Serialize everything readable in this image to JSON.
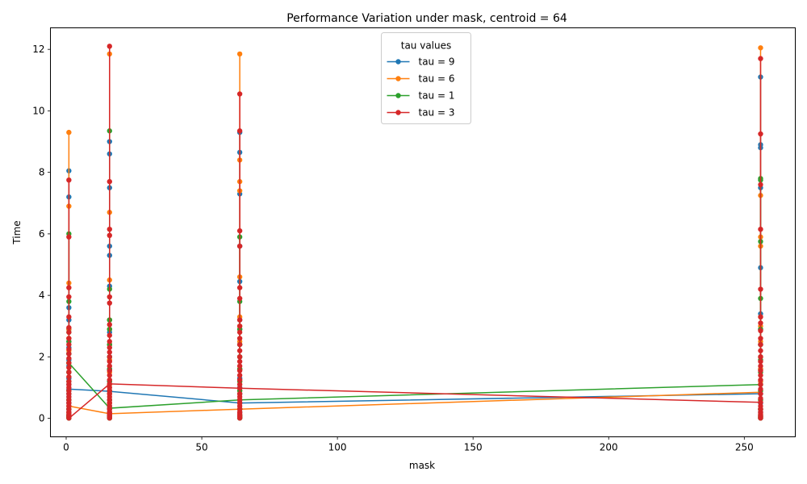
{
  "chart_data": {
    "type": "line",
    "title": "Performance Variation under mask, centroid = 64",
    "xlabel": "mask",
    "ylabel": "Time",
    "xlim": [
      -5.8,
      268.8
    ],
    "ylim": [
      -0.6,
      12.7
    ],
    "x_ticks": [
      0,
      50,
      100,
      150,
      200,
      250
    ],
    "y_ticks": [
      0,
      2,
      4,
      6,
      8,
      10,
      12
    ],
    "grid": false,
    "legend": {
      "title": "tau values",
      "position": "top-center"
    },
    "x_categories": [
      1,
      16,
      64,
      256
    ],
    "series": [
      {
        "name": "tau = 9",
        "color": "#1f77b4",
        "line": [
          0.95,
          0.88,
          0.5,
          0.8
        ],
        "points": [
          [
            0.01,
            0.05,
            0.1,
            0.2,
            0.3,
            0.4,
            0.5,
            0.6,
            0.7,
            0.8,
            0.95,
            1.1,
            1.3,
            1.5,
            1.7,
            1.9,
            2.1,
            2.3,
            2.5,
            2.9,
            3.2,
            3.6,
            7.2,
            8.05
          ],
          [
            0.01,
            0.05,
            0.1,
            0.2,
            0.3,
            0.4,
            0.6,
            0.88,
            1.2,
            1.6,
            2.0,
            2.4,
            2.8,
            3.2,
            4.3,
            5.3,
            5.6,
            7.5,
            8.6,
            9.0
          ],
          [
            0.01,
            0.05,
            0.1,
            0.2,
            0.3,
            0.5,
            0.8,
            1.0,
            1.3,
            1.6,
            2.0,
            2.4,
            2.9,
            3.2,
            4.45,
            5.6,
            7.3,
            8.65,
            9.3
          ],
          [
            0.01,
            0.05,
            0.1,
            0.2,
            0.3,
            0.5,
            0.8,
            1.2,
            1.6,
            2.0,
            2.4,
            2.9,
            3.4,
            4.9,
            7.5,
            8.8,
            8.9,
            11.1
          ]
        ]
      },
      {
        "name": "tau = 6",
        "color": "#ff7f0e",
        "line": [
          0.4,
          0.15,
          0.3,
          0.85
        ],
        "points": [
          [
            0.01,
            0.05,
            0.1,
            0.2,
            0.4,
            0.6,
            0.9,
            1.2,
            1.5,
            1.8,
            2.2,
            2.6,
            2.9,
            4.4,
            6.9,
            9.3
          ],
          [
            0.01,
            0.05,
            0.15,
            0.3,
            0.5,
            0.8,
            1.1,
            1.5,
            1.9,
            2.4,
            2.9,
            3.2,
            4.5,
            6.7,
            11.85
          ],
          [
            0.01,
            0.05,
            0.1,
            0.3,
            0.6,
            0.9,
            1.2,
            1.6,
            2.0,
            2.5,
            3.0,
            3.3,
            4.6,
            7.4,
            7.7,
            8.4,
            11.85
          ],
          [
            0.01,
            0.05,
            0.1,
            0.3,
            0.6,
            0.9,
            1.2,
            1.6,
            2.0,
            2.5,
            3.0,
            3.3,
            5.6,
            5.9,
            7.25,
            12.05
          ]
        ]
      },
      {
        "name": "tau = 1",
        "color": "#2ca02c",
        "line": [
          1.8,
          0.33,
          0.6,
          1.1
        ],
        "points": [
          [
            0.01,
            0.05,
            0.1,
            0.3,
            0.6,
            0.9,
            1.2,
            1.5,
            1.8,
            2.1,
            2.5,
            2.8,
            3.8,
            6.0
          ],
          [
            0.01,
            0.05,
            0.1,
            0.33,
            0.6,
            0.9,
            1.2,
            1.6,
            2.0,
            2.4,
            2.9,
            3.2,
            4.2,
            9.35
          ],
          [
            0.01,
            0.05,
            0.1,
            0.3,
            0.6,
            0.9,
            1.2,
            1.6,
            2.0,
            2.4,
            2.9,
            3.8,
            5.9
          ],
          [
            0.01,
            0.05,
            0.1,
            0.3,
            0.6,
            0.9,
            1.1,
            1.5,
            1.9,
            2.4,
            2.9,
            3.9,
            5.75,
            7.75,
            7.8
          ]
        ]
      },
      {
        "name": "tau = 3",
        "color": "#d62728",
        "line": [
          0.0,
          1.12,
          0.98,
          0.52
        ],
        "points": [
          [
            0.01,
            0.05,
            0.1,
            0.15,
            0.2,
            0.3,
            0.4,
            0.5,
            0.6,
            0.7,
            0.8,
            0.9,
            1.0,
            1.1,
            1.2,
            1.35,
            1.5,
            1.65,
            1.8,
            1.95,
            2.1,
            2.25,
            2.4,
            2.6,
            2.8,
            2.95,
            3.3,
            3.95,
            4.25,
            5.9,
            7.75
          ],
          [
            0.01,
            0.05,
            0.1,
            0.15,
            0.2,
            0.3,
            0.4,
            0.5,
            0.6,
            0.7,
            0.8,
            0.9,
            1.0,
            1.12,
            1.25,
            1.4,
            1.55,
            1.7,
            1.85,
            2.0,
            2.15,
            2.3,
            2.5,
            2.7,
            3.05,
            3.75,
            3.95,
            5.95,
            6.15,
            7.7,
            12.1
          ],
          [
            0.01,
            0.05,
            0.1,
            0.15,
            0.2,
            0.3,
            0.4,
            0.5,
            0.6,
            0.7,
            0.8,
            0.98,
            1.1,
            1.25,
            1.4,
            1.55,
            1.7,
            1.85,
            2.0,
            2.2,
            2.4,
            2.6,
            2.8,
            3.0,
            3.2,
            3.9,
            4.25,
            5.6,
            6.1,
            9.35,
            10.55
          ],
          [
            0.01,
            0.05,
            0.1,
            0.15,
            0.2,
            0.3,
            0.4,
            0.52,
            0.65,
            0.8,
            0.95,
            1.1,
            1.25,
            1.4,
            1.55,
            1.7,
            1.85,
            2.0,
            2.2,
            2.4,
            2.6,
            2.85,
            3.1,
            3.3,
            4.2,
            6.15,
            7.6,
            9.25,
            11.7
          ]
        ]
      }
    ]
  }
}
